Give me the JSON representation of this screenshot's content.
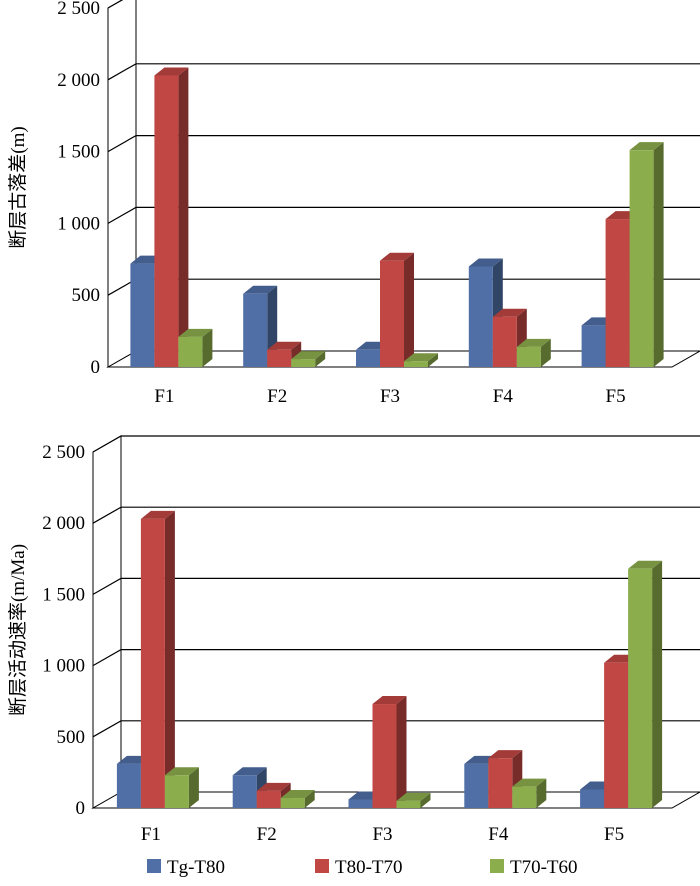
{
  "colors": {
    "Tg-T80": "#4f6fa6",
    "T80-T70": "#c04743",
    "T70-T60": "#8cad4c"
  },
  "legend": {
    "items": [
      "Tg-T80",
      "T80-T70",
      "T70-T60"
    ]
  },
  "chart_data": [
    {
      "type": "bar",
      "ylabel": "断层古落差(m)",
      "ylim": [
        0,
        2500
      ],
      "yticks": [
        "0",
        "500",
        "1 000",
        "1 500",
        "2 000",
        "2 500"
      ],
      "categories": [
        "F1",
        "F2",
        "F3",
        "F4",
        "F5"
      ],
      "series": [
        {
          "name": "Tg-T80",
          "values": [
            720,
            510,
            120,
            700,
            290
          ]
        },
        {
          "name": "T80-T70",
          "values": [
            2030,
            120,
            740,
            350,
            1030
          ]
        },
        {
          "name": "T70-T60",
          "values": [
            210,
            55,
            40,
            140,
            1510
          ]
        }
      ]
    },
    {
      "type": "bar",
      "ylabel": "断层活动速率(m/Ma)",
      "ylim": [
        0,
        2500
      ],
      "yticks": [
        "0",
        "500",
        "1 000",
        "1 500",
        "2 000",
        "2 500"
      ],
      "categories": [
        "F1",
        "F2",
        "F3",
        "F4",
        "F5"
      ],
      "series": [
        {
          "name": "Tg-T80",
          "values": [
            310,
            230,
            60,
            310,
            130
          ]
        },
        {
          "name": "T80-T70",
          "values": [
            2030,
            120,
            730,
            350,
            1020
          ]
        },
        {
          "name": "T70-T60",
          "values": [
            230,
            70,
            50,
            150,
            1680
          ]
        }
      ]
    }
  ]
}
